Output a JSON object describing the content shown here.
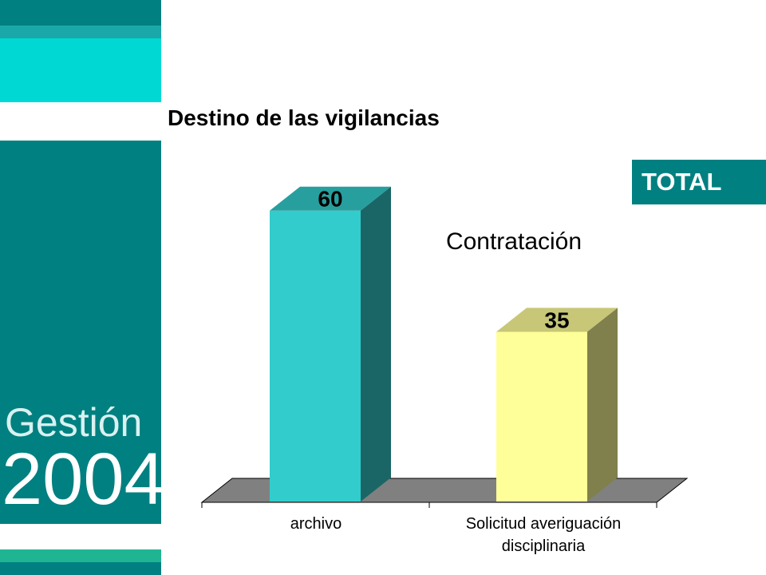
{
  "brand": {
    "name": "Gestión",
    "year": "2004"
  },
  "page_title": "Destino de las vigilancias",
  "badge": "TOTAL",
  "colors": {
    "sidebar_dark": "#008080",
    "sidebar_cyan": "#00d9d3",
    "bar_archivo": "#33cccc",
    "bar_solicitud": "#ffff99",
    "floor": "#808080"
  },
  "chart_data": {
    "type": "bar",
    "title": "Contratación",
    "categories": [
      "archivo",
      "Solicitud averiguación disciplinaria"
    ],
    "category_lines": [
      [
        "archivo"
      ],
      [
        "Solicitud averiguación",
        "disciplinaria"
      ]
    ],
    "values": [
      60,
      35
    ],
    "data_labels": [
      "60",
      "35"
    ],
    "ylim": [
      0,
      70
    ],
    "grid": false,
    "three_d": true
  }
}
